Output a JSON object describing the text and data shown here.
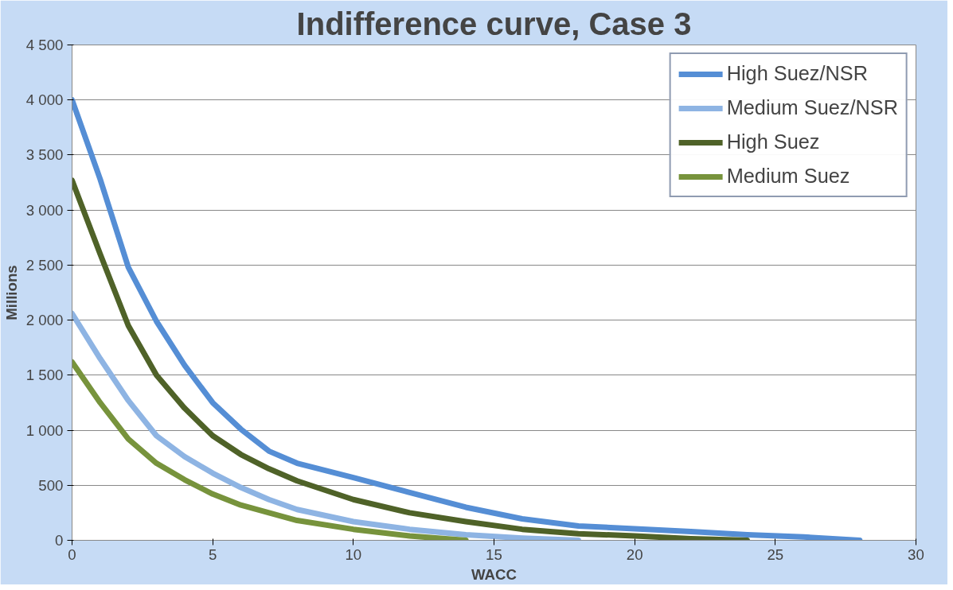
{
  "chart_data": {
    "type": "line",
    "title": "Indifference curve, Case 3",
    "xlabel": "WACC",
    "ylabel": "Millions",
    "xlim": [
      0,
      30
    ],
    "xticks": [
      0,
      5,
      10,
      15,
      20,
      25,
      30
    ],
    "ylim": [
      0,
      4500
    ],
    "yticks": [
      0,
      500,
      {
        "value": 1000,
        "label": "1 000"
      },
      {
        "value": 1500,
        "label": "1 500"
      },
      {
        "value": 2000,
        "label": "2 000"
      },
      {
        "value": 2500,
        "label": "2 500"
      },
      {
        "value": 3000,
        "label": "3 000"
      },
      {
        "value": 3500,
        "label": "3 500"
      },
      {
        "value": 4000,
        "label": "4 000"
      },
      {
        "value": 4500,
        "label": "4 500"
      }
    ],
    "grid": "y",
    "legend": "top right",
    "marker": "none",
    "line_style": "solid",
    "series": [
      {
        "name": "High Suez/NSR",
        "color": "#558ed5",
        "x": [
          0,
          1,
          2,
          3,
          4,
          5,
          6,
          7,
          8,
          10,
          12,
          14,
          16,
          18,
          20,
          22,
          24,
          26,
          28
        ],
        "values": [
          4000,
          3280,
          2480,
          1990,
          1590,
          1250,
          1010,
          810,
          700,
          570,
          435,
          300,
          195,
          130,
          105,
          80,
          50,
          30,
          0
        ]
      },
      {
        "name": "Medium Suez/NSR",
        "color": "#8eb4e3",
        "x": [
          0,
          1,
          2,
          3,
          4,
          5,
          6,
          7,
          8,
          10,
          12,
          14,
          16,
          18
        ],
        "values": [
          2060,
          1650,
          1270,
          950,
          760,
          610,
          480,
          370,
          280,
          170,
          100,
          50,
          20,
          0
        ]
      },
      {
        "name": "High Suez",
        "color": "#4f6228",
        "x": [
          0,
          1,
          2,
          3,
          4,
          5,
          6,
          7,
          8,
          10,
          12,
          14,
          16,
          18,
          20,
          22,
          24
        ],
        "values": [
          3270,
          2600,
          1950,
          1500,
          1200,
          950,
          780,
          650,
          540,
          370,
          250,
          170,
          100,
          60,
          40,
          15,
          0
        ]
      },
      {
        "name": "Medium Suez",
        "color": "#77933c",
        "x": [
          0,
          1,
          2,
          3,
          4,
          5,
          6,
          7,
          8,
          10,
          12,
          14
        ],
        "values": [
          1620,
          1250,
          920,
          700,
          550,
          420,
          320,
          250,
          180,
          100,
          40,
          0
        ]
      }
    ]
  }
}
